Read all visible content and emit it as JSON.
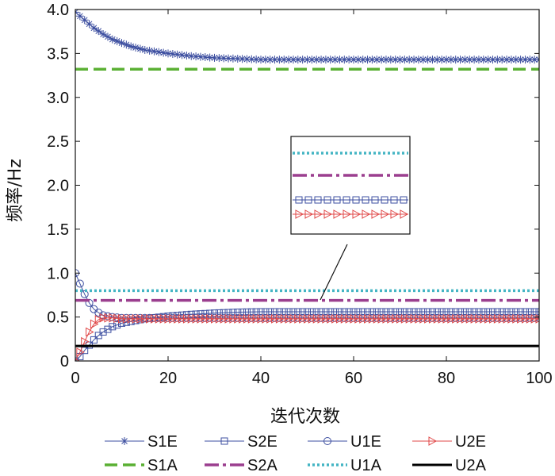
{
  "chart_data": {
    "type": "line",
    "xlabel": "迭代次数",
    "ylabel": "频率/Hz",
    "xlim": [
      0,
      100
    ],
    "ylim": [
      0,
      4.0
    ],
    "xticks": [
      0,
      20,
      40,
      60,
      80,
      100
    ],
    "xtick_labels": [
      "0",
      "20",
      "40",
      "60",
      "80",
      "100"
    ],
    "yticks": [
      0,
      0.5,
      1.0,
      1.5,
      2.0,
      2.5,
      3.0,
      3.5,
      4.0
    ],
    "ytick_labels": [
      "0",
      "0.5",
      "1.0",
      "1.5",
      "2.0",
      "2.5",
      "3.0",
      "3.5",
      "4.0"
    ],
    "grid": false,
    "legend_position": "bottom",
    "series": [
      {
        "name": "S1E",
        "color": "#3d4fa0",
        "marker": "asterisk",
        "style": "solid",
        "x": [
          0,
          2,
          4,
          6,
          8,
          10,
          12,
          15,
          20,
          25,
          30,
          35,
          40,
          50,
          60,
          70,
          80,
          90,
          100
        ],
        "y": [
          3.97,
          3.88,
          3.79,
          3.72,
          3.66,
          3.62,
          3.58,
          3.54,
          3.5,
          3.47,
          3.45,
          3.44,
          3.43,
          3.43,
          3.43,
          3.43,
          3.43,
          3.43,
          3.43
        ]
      },
      {
        "name": "S2E",
        "color": "#3d4fa0",
        "marker": "square",
        "style": "solid",
        "x": [
          0,
          1,
          2,
          3,
          4,
          5,
          6,
          8,
          10,
          15,
          20,
          25,
          30,
          35,
          40,
          50,
          60,
          70,
          80,
          90,
          100
        ],
        "y": [
          0.0,
          0.05,
          0.12,
          0.18,
          0.24,
          0.29,
          0.33,
          0.39,
          0.43,
          0.48,
          0.51,
          0.53,
          0.545,
          0.555,
          0.56,
          0.56,
          0.56,
          0.56,
          0.56,
          0.56,
          0.56
        ]
      },
      {
        "name": "U1E",
        "color": "#3d4fa0",
        "marker": "circle",
        "style": "solid",
        "x": [
          0,
          1,
          2,
          3,
          4,
          5,
          6,
          8,
          10,
          15,
          20,
          30,
          40,
          50,
          60,
          70,
          80,
          90,
          100
        ],
        "y": [
          1.0,
          0.88,
          0.76,
          0.66,
          0.59,
          0.55,
          0.52,
          0.5,
          0.49,
          0.49,
          0.49,
          0.49,
          0.49,
          0.49,
          0.49,
          0.49,
          0.49,
          0.49,
          0.49
        ]
      },
      {
        "name": "U2E",
        "color": "#e04848",
        "marker": "triangle-right",
        "style": "solid",
        "x": [
          0,
          1,
          2,
          3,
          4,
          5,
          6,
          8,
          10,
          15,
          20,
          30,
          40,
          50,
          60,
          70,
          80,
          90,
          100
        ],
        "y": [
          0.0,
          0.1,
          0.22,
          0.33,
          0.42,
          0.47,
          0.49,
          0.49,
          0.48,
          0.48,
          0.48,
          0.48,
          0.48,
          0.48,
          0.48,
          0.48,
          0.48,
          0.48,
          0.48
        ]
      },
      {
        "name": "S1A",
        "color": "#5ab033",
        "style": "dashed",
        "x": [
          0,
          100
        ],
        "y": [
          3.32,
          3.32
        ]
      },
      {
        "name": "S2A",
        "color": "#9b3f8f",
        "style": "dashdot",
        "x": [
          0,
          100
        ],
        "y": [
          0.69,
          0.69
        ]
      },
      {
        "name": "U1A",
        "color": "#45b5c4",
        "style": "dotted",
        "x": [
          0,
          100
        ],
        "y": [
          0.8,
          0.8
        ]
      },
      {
        "name": "U2A",
        "color": "#000000",
        "style": "solid-thick",
        "x": [
          0,
          100
        ],
        "y": [
          0.17,
          0.17
        ]
      }
    ],
    "inset": {
      "description": "zoomed view",
      "series_order": [
        "U1A",
        "S2A",
        "S2E",
        "U2E"
      ]
    }
  }
}
